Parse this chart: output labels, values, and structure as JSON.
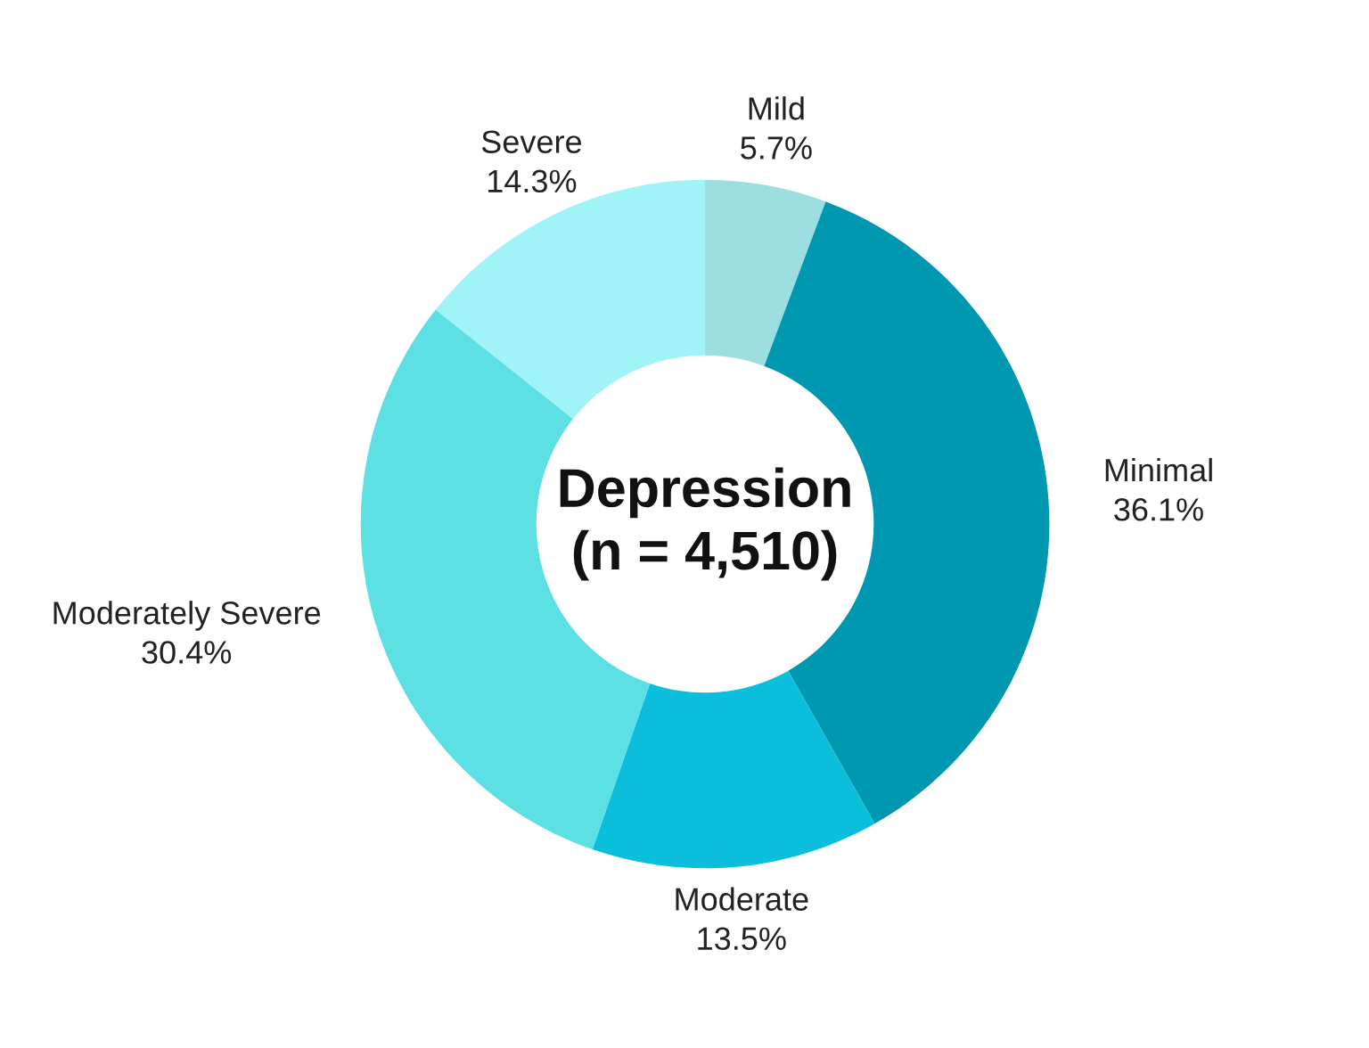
{
  "chart_data": {
    "type": "donut",
    "title": "Depression\n(n = 4,510)",
    "categories": [
      "Mild",
      "Minimal",
      "Moderate",
      "Moderately Severe",
      "Severe"
    ],
    "values": [
      5.7,
      36.1,
      13.5,
      30.4,
      14.3
    ],
    "value_labels": [
      "5.7%",
      "36.1%",
      "13.5%",
      "30.4%",
      "14.3%"
    ],
    "colors": [
      "#9ddfe0",
      "#0097b0",
      "#0bbedc",
      "#5ce0e4",
      "#a0f3f7"
    ],
    "legend": false
  }
}
